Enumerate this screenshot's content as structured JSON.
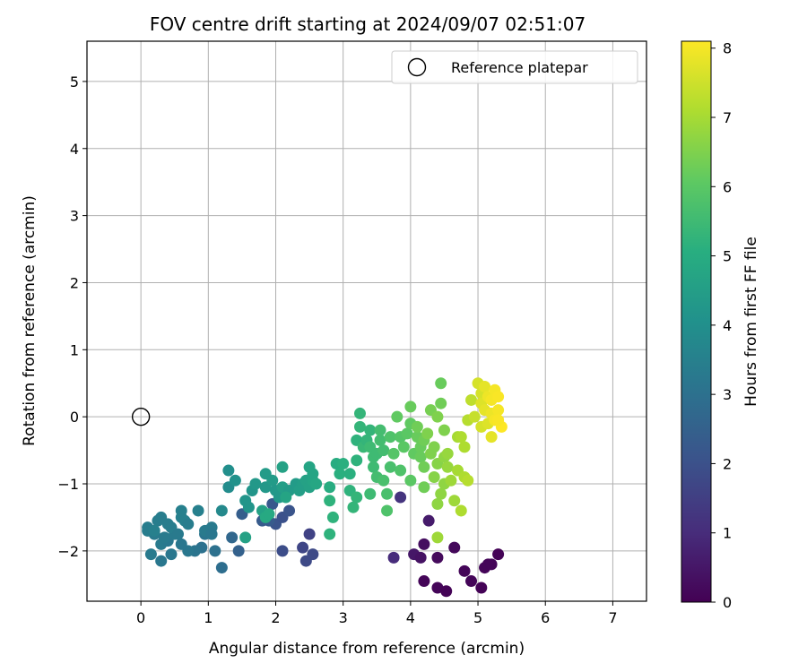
{
  "chart_data": {
    "type": "scatter",
    "title": "FOV centre drift starting at 2024/09/07 02:51:07",
    "xlabel": "Angular distance from reference (arcmin)",
    "ylabel": "Rotation from reference (arcmin)",
    "xlim": [
      -0.8,
      7.5
    ],
    "ylim": [
      -2.75,
      5.6
    ],
    "xticks": [
      "0",
      "1",
      "2",
      "3",
      "4",
      "5",
      "6",
      "7"
    ],
    "yticks": [
      "−2",
      "−1",
      "0",
      "1",
      "2",
      "3",
      "4",
      "5"
    ],
    "grid": true,
    "legend": {
      "placement": "top-right",
      "entries": [
        "Reference platepar"
      ]
    },
    "reference_point": {
      "x": 0,
      "y": 0
    },
    "colorbar": {
      "label": "Hours from first FF file",
      "range": [
        0,
        8.1
      ],
      "ticks": [
        "0",
        "1",
        "2",
        "3",
        "4",
        "5",
        "6",
        "7",
        "8"
      ],
      "colormap": "viridis"
    },
    "points": [
      {
        "x": 4.2,
        "y": -2.45,
        "c": 0.1
      },
      {
        "x": 4.4,
        "y": -2.55,
        "c": 0.1
      },
      {
        "x": 4.53,
        "y": -2.6,
        "c": 0.05
      },
      {
        "x": 4.9,
        "y": -2.45,
        "c": 0.1
      },
      {
        "x": 5.05,
        "y": -2.55,
        "c": 0.05
      },
      {
        "x": 5.1,
        "y": -2.25,
        "c": 0.1
      },
      {
        "x": 5.15,
        "y": -2.2,
        "c": 0.1
      },
      {
        "x": 5.2,
        "y": -2.2,
        "c": 0.1
      },
      {
        "x": 5.3,
        "y": -2.05,
        "c": 0.05
      },
      {
        "x": 4.8,
        "y": -2.3,
        "c": 0.1
      },
      {
        "x": 4.65,
        "y": -1.95,
        "c": 0.15
      },
      {
        "x": 4.4,
        "y": -2.1,
        "c": 0.2
      },
      {
        "x": 4.2,
        "y": -1.9,
        "c": 0.3
      },
      {
        "x": 4.05,
        "y": -2.05,
        "c": 0.5
      },
      {
        "x": 4.15,
        "y": -2.1,
        "c": 0.4
      },
      {
        "x": 4.27,
        "y": -1.55,
        "c": 0.6
      },
      {
        "x": 3.75,
        "y": -2.1,
        "c": 1.0
      },
      {
        "x": 3.85,
        "y": -1.2,
        "c": 1.2
      },
      {
        "x": 2.5,
        "y": -1.75,
        "c": 1.6
      },
      {
        "x": 2.4,
        "y": -1.95,
        "c": 1.7
      },
      {
        "x": 2.55,
        "y": -2.05,
        "c": 1.8
      },
      {
        "x": 2.45,
        "y": -2.15,
        "c": 1.8
      },
      {
        "x": 2.1,
        "y": -2.0,
        "c": 1.9
      },
      {
        "x": 2.0,
        "y": -1.6,
        "c": 2.1
      },
      {
        "x": 2.1,
        "y": -1.5,
        "c": 2.0
      },
      {
        "x": 2.2,
        "y": -1.4,
        "c": 2.1
      },
      {
        "x": 1.9,
        "y": -1.55,
        "c": 2.3
      },
      {
        "x": 1.8,
        "y": -1.55,
        "c": 2.3
      },
      {
        "x": 1.95,
        "y": -1.3,
        "c": 2.2
      },
      {
        "x": 1.5,
        "y": -1.45,
        "c": 2.4
      },
      {
        "x": 1.45,
        "y": -2.0,
        "c": 2.5
      },
      {
        "x": 1.35,
        "y": -1.8,
        "c": 2.7
      },
      {
        "x": 1.2,
        "y": -2.25,
        "c": 2.9
      },
      {
        "x": 1.1,
        "y": -2.0,
        "c": 3.0
      },
      {
        "x": 0.95,
        "y": -1.75,
        "c": 3.1
      },
      {
        "x": 0.9,
        "y": -1.95,
        "c": 3.0
      },
      {
        "x": 0.8,
        "y": -2.0,
        "c": 3.1
      },
      {
        "x": 0.7,
        "y": -2.0,
        "c": 3.2
      },
      {
        "x": 0.6,
        "y": -1.9,
        "c": 3.2
      },
      {
        "x": 0.45,
        "y": -2.05,
        "c": 3.2
      },
      {
        "x": 0.3,
        "y": -2.15,
        "c": 3.2
      },
      {
        "x": 0.15,
        "y": -2.05,
        "c": 3.3
      },
      {
        "x": 0.3,
        "y": -1.9,
        "c": 3.3
      },
      {
        "x": 0.4,
        "y": -1.85,
        "c": 3.2
      },
      {
        "x": 0.5,
        "y": -1.75,
        "c": 3.3
      },
      {
        "x": 0.2,
        "y": -1.75,
        "c": 3.3
      },
      {
        "x": 0.1,
        "y": -1.7,
        "c": 3.4
      },
      {
        "x": 0.1,
        "y": -1.65,
        "c": 3.4
      },
      {
        "x": 0.25,
        "y": -1.55,
        "c": 3.4
      },
      {
        "x": 0.3,
        "y": -1.5,
        "c": 3.4
      },
      {
        "x": 0.4,
        "y": -1.6,
        "c": 3.4
      },
      {
        "x": 0.45,
        "y": -1.65,
        "c": 3.4
      },
      {
        "x": 0.55,
        "y": -1.75,
        "c": 3.3
      },
      {
        "x": 0.6,
        "y": -1.5,
        "c": 3.5
      },
      {
        "x": 0.6,
        "y": -1.4,
        "c": 3.5
      },
      {
        "x": 0.65,
        "y": -1.55,
        "c": 3.5
      },
      {
        "x": 0.85,
        "y": -1.4,
        "c": 3.5
      },
      {
        "x": 0.95,
        "y": -1.7,
        "c": 3.3
      },
      {
        "x": 1.05,
        "y": -1.65,
        "c": 3.3
      },
      {
        "x": 1.05,
        "y": -1.75,
        "c": 3.2
      },
      {
        "x": 0.35,
        "y": -1.8,
        "c": 3.3
      },
      {
        "x": 0.2,
        "y": -1.7,
        "c": 3.5
      },
      {
        "x": 0.7,
        "y": -1.6,
        "c": 3.4
      },
      {
        "x": 1.2,
        "y": -1.4,
        "c": 3.8
      },
      {
        "x": 1.3,
        "y": -1.05,
        "c": 3.9
      },
      {
        "x": 1.3,
        "y": -0.8,
        "c": 4.0
      },
      {
        "x": 1.4,
        "y": -0.95,
        "c": 4.1
      },
      {
        "x": 1.55,
        "y": -1.25,
        "c": 4.2
      },
      {
        "x": 1.55,
        "y": -1.8,
        "c": 4.6
      },
      {
        "x": 1.6,
        "y": -1.35,
        "c": 4.2
      },
      {
        "x": 1.65,
        "y": -1.1,
        "c": 4.2
      },
      {
        "x": 1.7,
        "y": -1.0,
        "c": 4.3
      },
      {
        "x": 1.8,
        "y": -1.4,
        "c": 4.6
      },
      {
        "x": 1.85,
        "y": -1.5,
        "c": 4.9
      },
      {
        "x": 1.9,
        "y": -1.45,
        "c": 4.9
      },
      {
        "x": 1.85,
        "y": -1.05,
        "c": 4.3
      },
      {
        "x": 1.85,
        "y": -0.85,
        "c": 4.4
      },
      {
        "x": 1.95,
        "y": -0.95,
        "c": 4.4
      },
      {
        "x": 2.0,
        "y": -1.1,
        "c": 4.3
      },
      {
        "x": 2.05,
        "y": -1.2,
        "c": 4.3
      },
      {
        "x": 2.1,
        "y": -1.05,
        "c": 4.5
      },
      {
        "x": 2.1,
        "y": -0.75,
        "c": 4.6
      },
      {
        "x": 2.2,
        "y": -1.1,
        "c": 4.4
      },
      {
        "x": 2.3,
        "y": -1.0,
        "c": 4.4
      },
      {
        "x": 2.35,
        "y": -1.1,
        "c": 4.5
      },
      {
        "x": 2.4,
        "y": -1.0,
        "c": 4.5
      },
      {
        "x": 2.45,
        "y": -0.95,
        "c": 4.6
      },
      {
        "x": 2.5,
        "y": -1.05,
        "c": 4.6
      },
      {
        "x": 2.55,
        "y": -0.95,
        "c": 4.7
      },
      {
        "x": 2.5,
        "y": -0.75,
        "c": 4.7
      },
      {
        "x": 2.55,
        "y": -0.85,
        "c": 4.7
      },
      {
        "x": 2.6,
        "y": -1.0,
        "c": 4.8
      },
      {
        "x": 2.15,
        "y": -1.2,
        "c": 4.7
      },
      {
        "x": 2.8,
        "y": -1.05,
        "c": 5.0
      },
      {
        "x": 2.8,
        "y": -1.25,
        "c": 5.2
      },
      {
        "x": 2.85,
        "y": -1.5,
        "c": 5.2
      },
      {
        "x": 2.8,
        "y": -1.75,
        "c": 5.2
      },
      {
        "x": 2.9,
        "y": -0.7,
        "c": 5.0
      },
      {
        "x": 2.95,
        "y": -0.85,
        "c": 5.1
      },
      {
        "x": 3.0,
        "y": -0.7,
        "c": 5.1
      },
      {
        "x": 3.1,
        "y": -0.85,
        "c": 5.1
      },
      {
        "x": 3.1,
        "y": -1.1,
        "c": 5.2
      },
      {
        "x": 3.15,
        "y": -1.35,
        "c": 5.3
      },
      {
        "x": 3.2,
        "y": -1.2,
        "c": 5.3
      },
      {
        "x": 3.2,
        "y": -0.65,
        "c": 5.2
      },
      {
        "x": 3.2,
        "y": -0.35,
        "c": 5.2
      },
      {
        "x": 3.25,
        "y": -0.15,
        "c": 5.3
      },
      {
        "x": 3.25,
        "y": 0.05,
        "c": 5.3
      },
      {
        "x": 3.3,
        "y": -0.45,
        "c": 5.4
      },
      {
        "x": 3.35,
        "y": -0.35,
        "c": 5.3
      },
      {
        "x": 3.4,
        "y": -0.2,
        "c": 5.3
      },
      {
        "x": 3.4,
        "y": -0.45,
        "c": 5.5
      },
      {
        "x": 3.45,
        "y": -0.6,
        "c": 5.5
      },
      {
        "x": 3.45,
        "y": -0.75,
        "c": 5.5
      },
      {
        "x": 3.4,
        "y": -1.15,
        "c": 5.5
      },
      {
        "x": 3.5,
        "y": -0.9,
        "c": 5.6
      },
      {
        "x": 3.5,
        "y": -0.55,
        "c": 5.5
      },
      {
        "x": 3.55,
        "y": -0.35,
        "c": 5.6
      },
      {
        "x": 3.55,
        "y": -0.2,
        "c": 5.6
      },
      {
        "x": 3.6,
        "y": -0.5,
        "c": 5.6
      },
      {
        "x": 3.6,
        "y": -0.95,
        "c": 5.7
      },
      {
        "x": 3.65,
        "y": -1.15,
        "c": 5.7
      },
      {
        "x": 3.65,
        "y": -1.4,
        "c": 5.8
      },
      {
        "x": 3.7,
        "y": -0.75,
        "c": 5.7
      },
      {
        "x": 3.7,
        "y": -0.3,
        "c": 5.8
      },
      {
        "x": 3.75,
        "y": -0.55,
        "c": 5.9
      },
      {
        "x": 3.8,
        "y": -0.0,
        "c": 6.1
      },
      {
        "x": 3.85,
        "y": -0.3,
        "c": 5.9
      },
      {
        "x": 3.85,
        "y": -0.8,
        "c": 5.8
      },
      {
        "x": 3.9,
        "y": -0.45,
        "c": 6.0
      },
      {
        "x": 3.95,
        "y": -0.25,
        "c": 6.0
      },
      {
        "x": 4.0,
        "y": -0.1,
        "c": 6.1
      },
      {
        "x": 4.0,
        "y": 0.15,
        "c": 6.2
      },
      {
        "x": 4.0,
        "y": -0.95,
        "c": 6.0
      },
      {
        "x": 4.05,
        "y": -0.55,
        "c": 6.1
      },
      {
        "x": 4.1,
        "y": -0.3,
        "c": 6.2
      },
      {
        "x": 4.1,
        "y": -0.15,
        "c": 6.3
      },
      {
        "x": 4.15,
        "y": -0.45,
        "c": 6.2
      },
      {
        "x": 4.15,
        "y": -0.6,
        "c": 6.2
      },
      {
        "x": 4.2,
        "y": -0.35,
        "c": 6.3
      },
      {
        "x": 4.2,
        "y": -0.75,
        "c": 6.3
      },
      {
        "x": 4.2,
        "y": -1.05,
        "c": 6.3
      },
      {
        "x": 4.25,
        "y": -0.25,
        "c": 6.5
      },
      {
        "x": 4.3,
        "y": -0.55,
        "c": 6.5
      },
      {
        "x": 4.3,
        "y": 0.1,
        "c": 6.4
      },
      {
        "x": 4.35,
        "y": -0.45,
        "c": 6.5
      },
      {
        "x": 4.35,
        "y": -0.9,
        "c": 6.6
      },
      {
        "x": 4.4,
        "y": 0.0,
        "c": 6.5
      },
      {
        "x": 4.4,
        "y": -0.7,
        "c": 6.6
      },
      {
        "x": 4.45,
        "y": 0.2,
        "c": 6.3
      },
      {
        "x": 4.45,
        "y": 0.5,
        "c": 6.2
      },
      {
        "x": 4.45,
        "y": -1.15,
        "c": 6.7
      },
      {
        "x": 4.4,
        "y": -1.3,
        "c": 6.7
      },
      {
        "x": 4.4,
        "y": -1.8,
        "c": 6.9
      },
      {
        "x": 4.5,
        "y": -1.0,
        "c": 6.7
      },
      {
        "x": 4.5,
        "y": -0.6,
        "c": 6.7
      },
      {
        "x": 4.5,
        "y": -0.2,
        "c": 6.5
      },
      {
        "x": 4.55,
        "y": -0.75,
        "c": 6.8
      },
      {
        "x": 4.55,
        "y": -0.55,
        "c": 6.8
      },
      {
        "x": 4.6,
        "y": -0.95,
        "c": 6.9
      },
      {
        "x": 4.65,
        "y": -1.25,
        "c": 6.9
      },
      {
        "x": 4.7,
        "y": -0.3,
        "c": 7.0
      },
      {
        "x": 4.7,
        "y": -0.8,
        "c": 7.0
      },
      {
        "x": 4.75,
        "y": -0.3,
        "c": 7.1
      },
      {
        "x": 4.75,
        "y": -1.4,
        "c": 7.1
      },
      {
        "x": 4.8,
        "y": -0.9,
        "c": 7.1
      },
      {
        "x": 4.8,
        "y": -0.45,
        "c": 7.1
      },
      {
        "x": 4.85,
        "y": -0.05,
        "c": 7.2
      },
      {
        "x": 4.85,
        "y": -0.95,
        "c": 7.2
      },
      {
        "x": 4.9,
        "y": 0.25,
        "c": 7.3
      },
      {
        "x": 4.95,
        "y": 0.0,
        "c": 7.4
      },
      {
        "x": 5.0,
        "y": 0.5,
        "c": 7.6
      },
      {
        "x": 5.05,
        "y": 0.35,
        "c": 7.6
      },
      {
        "x": 5.05,
        "y": 0.2,
        "c": 7.7
      },
      {
        "x": 5.05,
        "y": -0.15,
        "c": 7.6
      },
      {
        "x": 5.1,
        "y": 0.1,
        "c": 7.8
      },
      {
        "x": 5.1,
        "y": 0.45,
        "c": 7.8
      },
      {
        "x": 5.15,
        "y": -0.1,
        "c": 7.7
      },
      {
        "x": 5.15,
        "y": 0.3,
        "c": 7.9
      },
      {
        "x": 5.2,
        "y": 0.05,
        "c": 7.9
      },
      {
        "x": 5.2,
        "y": -0.3,
        "c": 7.8
      },
      {
        "x": 5.2,
        "y": 0.25,
        "c": 8.0
      },
      {
        "x": 5.25,
        "y": 0.4,
        "c": 8.0
      },
      {
        "x": 5.25,
        "y": -0.05,
        "c": 8.0
      },
      {
        "x": 5.3,
        "y": 0.3,
        "c": 8.05
      },
      {
        "x": 5.3,
        "y": 0.1,
        "c": 8.0
      },
      {
        "x": 5.35,
        "y": -0.15,
        "c": 8.1
      },
      {
        "x": 5.3,
        "y": -0.05,
        "c": 8.05
      }
    ]
  }
}
